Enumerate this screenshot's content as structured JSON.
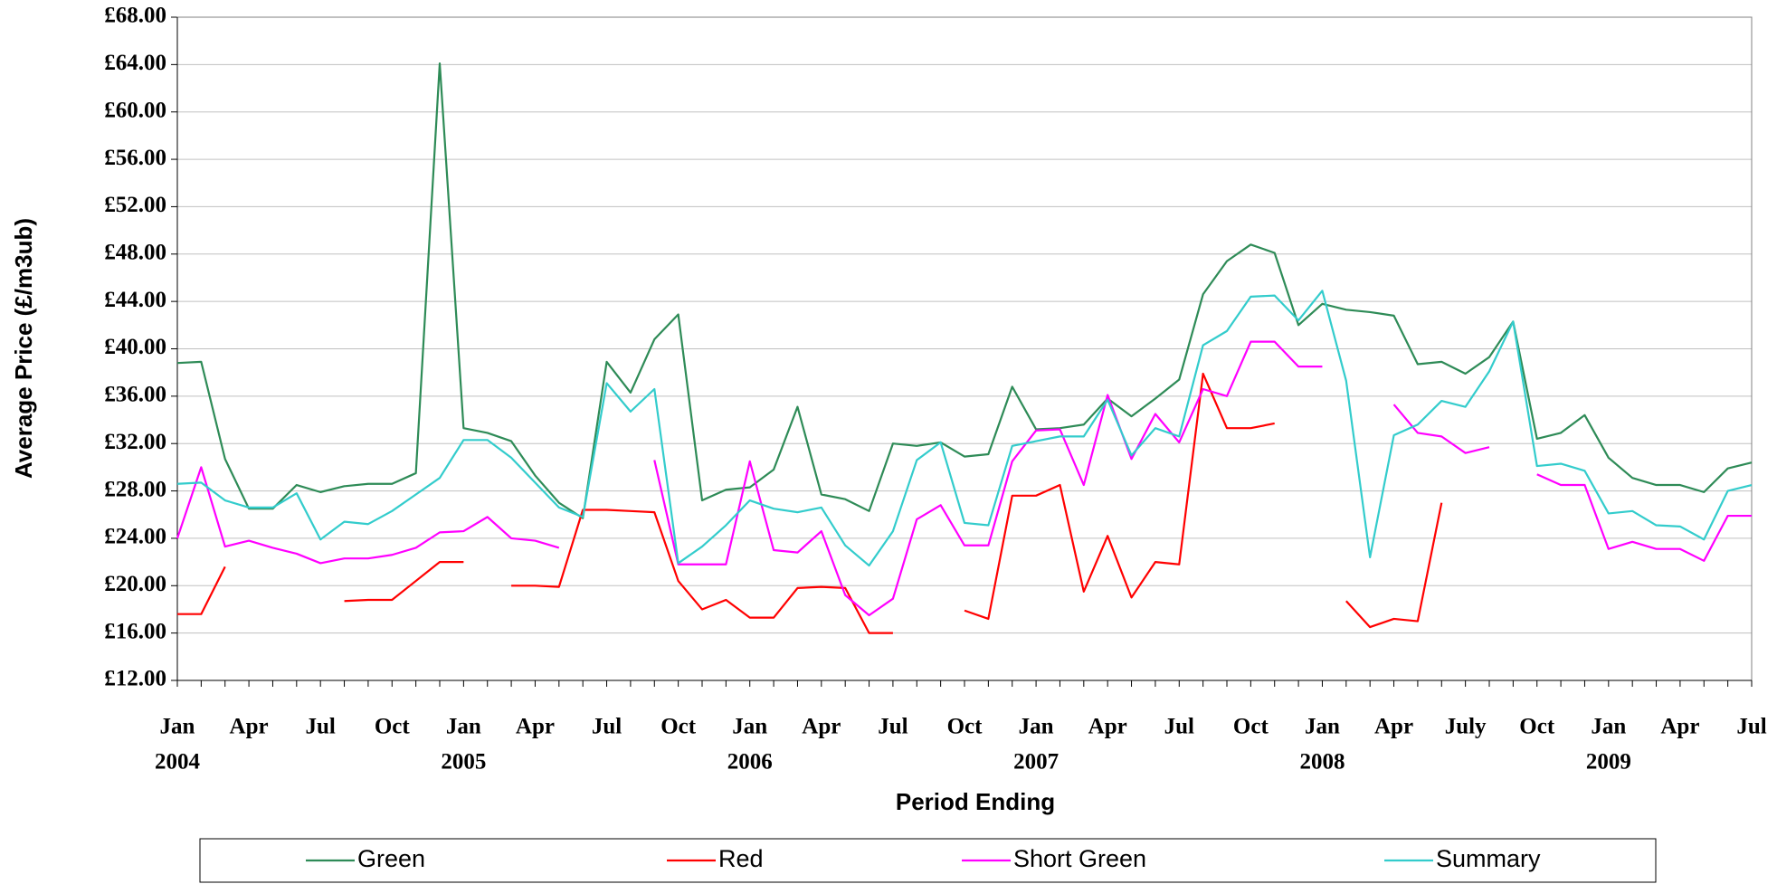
{
  "chart_data": {
    "type": "line",
    "y_label": "Average Price (£/m3ub)",
    "x_label": "Period Ending",
    "categories": [
      "Jan",
      null,
      null,
      "Apr",
      null,
      null,
      "Jul",
      null,
      null,
      "Oct",
      null,
      null,
      "Jan",
      null,
      null,
      "Apr",
      null,
      null,
      "Jul",
      null,
      null,
      "Oct",
      null,
      null,
      "Jan",
      null,
      null,
      "Apr",
      null,
      null,
      "Jul",
      null,
      null,
      "Oct",
      null,
      null,
      "Jan",
      null,
      null,
      "Apr",
      null,
      null,
      "Jul",
      null,
      null,
      "Oct",
      null,
      null,
      "Jan",
      null,
      null,
      "Apr",
      null,
      null,
      "July",
      null,
      null,
      "Oct",
      null,
      null,
      "Jan",
      null,
      null,
      "Apr",
      null,
      null,
      "Jul"
    ],
    "years": [
      "2004",
      null,
      null,
      null,
      null,
      null,
      null,
      null,
      null,
      null,
      null,
      null,
      "2005",
      null,
      null,
      null,
      null,
      null,
      null,
      null,
      null,
      null,
      null,
      null,
      "2006",
      null,
      null,
      null,
      null,
      null,
      null,
      null,
      null,
      null,
      null,
      null,
      "2007",
      null,
      null,
      null,
      null,
      null,
      null,
      null,
      null,
      null,
      null,
      null,
      "2008",
      null,
      null,
      null,
      null,
      null,
      null,
      null,
      null,
      null,
      null,
      null,
      "2009",
      null,
      null,
      null,
      null,
      null,
      null
    ],
    "ylim": [
      12,
      68
    ],
    "yticks": [
      {
        "value": 12,
        "label": "£12.00"
      },
      {
        "value": 16,
        "label": "£16.00"
      },
      {
        "value": 20,
        "label": "£20.00"
      },
      {
        "value": 24,
        "label": "£24.00"
      },
      {
        "value": 28,
        "label": "£28.00"
      },
      {
        "value": 32,
        "label": "£32.00"
      },
      {
        "value": 36,
        "label": "£36.00"
      },
      {
        "value": 40,
        "label": "£40.00"
      },
      {
        "value": 44,
        "label": "£44.00"
      },
      {
        "value": 48,
        "label": "£48.00"
      },
      {
        "value": 52,
        "label": "£52.00"
      },
      {
        "value": 56,
        "label": "£56.00"
      },
      {
        "value": 60,
        "label": "£60.00"
      },
      {
        "value": 64,
        "label": "£64.00"
      },
      {
        "value": 68,
        "label": "£68.00"
      }
    ],
    "grid": true,
    "legend": "bottom",
    "series": [
      {
        "name": "Green",
        "color": "#2e8b57",
        "values": [
          38.8,
          38.9,
          30.7,
          26.5,
          26.5,
          28.5,
          27.9,
          28.4,
          28.6,
          28.6,
          29.5,
          64.1,
          33.3,
          32.9,
          32.2,
          29.3,
          27.0,
          25.7,
          38.9,
          36.3,
          40.8,
          42.9,
          27.2,
          28.1,
          28.3,
          29.8,
          35.1,
          27.7,
          27.3,
          26.3,
          32.0,
          31.8,
          32.1,
          30.9,
          31.1,
          36.8,
          33.2,
          33.3,
          33.6,
          35.8,
          34.3,
          35.8,
          37.4,
          44.6,
          47.4,
          48.8,
          48.1,
          42.0,
          43.8,
          43.3,
          43.1,
          42.8,
          38.7,
          38.9,
          37.9,
          39.3,
          42.3,
          32.4,
          32.9,
          34.4,
          30.8,
          29.1,
          28.5,
          28.5,
          27.9,
          29.9,
          30.4
        ]
      },
      {
        "name": "Red",
        "color": "#ff0000",
        "values": [
          17.6,
          17.6,
          21.6,
          null,
          null,
          null,
          null,
          18.7,
          18.8,
          18.8,
          20.4,
          22.0,
          22.0,
          null,
          20.0,
          20.0,
          19.9,
          26.4,
          26.4,
          26.3,
          26.2,
          20.4,
          18.0,
          18.8,
          17.3,
          17.3,
          19.8,
          19.9,
          19.8,
          16.0,
          16.0,
          null,
          null,
          17.9,
          17.2,
          27.6,
          27.6,
          28.5,
          19.5,
          24.2,
          19.0,
          22.0,
          21.8,
          37.9,
          33.3,
          33.3,
          33.7,
          null,
          null,
          18.7,
          16.5,
          17.2,
          17.0,
          27.0,
          null,
          null,
          null,
          null,
          null,
          null,
          null,
          null,
          null,
          null,
          null,
          null,
          null
        ]
      },
      {
        "name": "Short Green",
        "color": "#ff00ff",
        "values": [
          24.0,
          30.0,
          23.3,
          23.8,
          23.2,
          22.7,
          21.9,
          22.3,
          22.3,
          22.6,
          23.2,
          24.5,
          24.6,
          25.8,
          24.0,
          23.8,
          23.2,
          null,
          null,
          null,
          30.6,
          21.8,
          21.8,
          21.8,
          30.5,
          23.0,
          22.8,
          24.6,
          19.2,
          17.5,
          18.9,
          25.6,
          26.8,
          23.4,
          23.4,
          30.5,
          33.1,
          33.2,
          28.5,
          36.1,
          30.7,
          34.5,
          32.1,
          36.6,
          36.0,
          40.6,
          40.6,
          38.5,
          38.5,
          null,
          null,
          35.3,
          32.9,
          32.6,
          31.2,
          31.7,
          null,
          29.4,
          28.5,
          28.5,
          23.1,
          23.7,
          23.1,
          23.1,
          22.1,
          25.9,
          25.9
        ]
      },
      {
        "name": "Summary",
        "color": "#33cccc",
        "values": [
          28.6,
          28.7,
          27.2,
          26.6,
          26.6,
          27.8,
          23.9,
          25.4,
          25.2,
          26.3,
          27.7,
          29.1,
          32.3,
          32.3,
          30.8,
          28.7,
          26.6,
          25.8,
          37.1,
          34.7,
          36.6,
          21.9,
          23.3,
          25.1,
          27.2,
          26.5,
          26.2,
          26.6,
          23.4,
          21.7,
          24.6,
          30.6,
          32.1,
          25.3,
          25.1,
          31.8,
          32.2,
          32.6,
          32.6,
          35.7,
          31.0,
          33.3,
          32.6,
          40.3,
          41.5,
          44.4,
          44.5,
          42.4,
          44.9,
          37.3,
          22.4,
          32.7,
          33.6,
          35.6,
          35.1,
          38.1,
          42.3,
          30.1,
          30.3,
          29.7,
          26.1,
          26.3,
          25.1,
          25.0,
          23.9,
          28.0,
          28.5
        ]
      }
    ]
  }
}
